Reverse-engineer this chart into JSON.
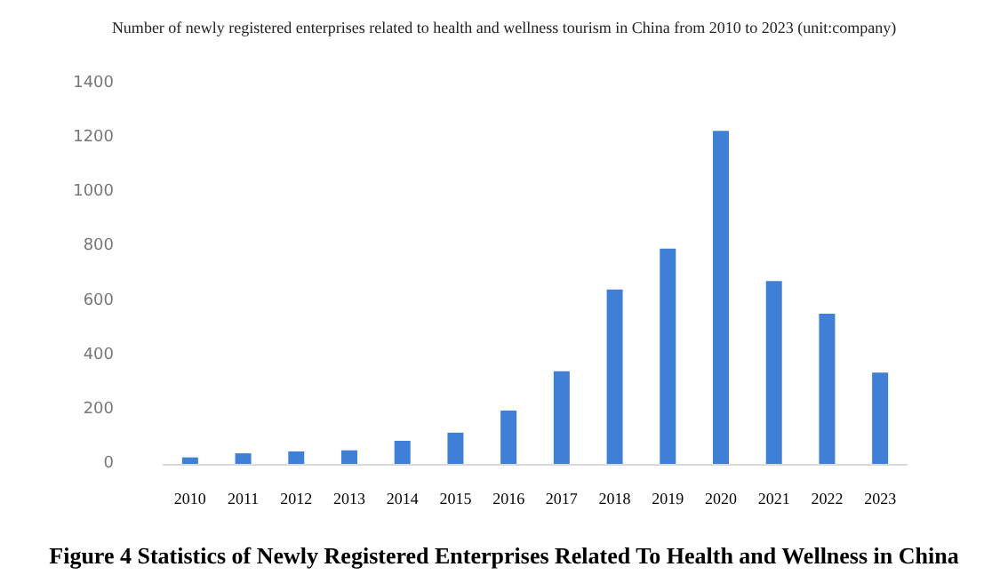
{
  "chart_data": {
    "type": "bar",
    "title": "Number of newly registered enterprises related to health and wellness tourism in China from 2010 to 2023 (unit:company)",
    "annotations": [
      "Figure 4 Statistics of Newly Registered Enterprises Related To Health and Wellness in China"
    ],
    "categories": [
      "2010",
      "2011",
      "2012",
      "2013",
      "2014",
      "2015",
      "2016",
      "2017",
      "2018",
      "2019",
      "2020",
      "2021",
      "2022",
      "2023"
    ],
    "values": [
      24,
      39,
      46,
      50,
      85,
      115,
      196,
      341,
      642,
      792,
      1226,
      673,
      553,
      336
    ],
    "color": "#3f7fd6",
    "ylim": [
      0,
      1400
    ],
    "yticks": [
      0,
      200,
      400,
      600,
      800,
      1000,
      1200,
      1400
    ],
    "grid": false
  }
}
